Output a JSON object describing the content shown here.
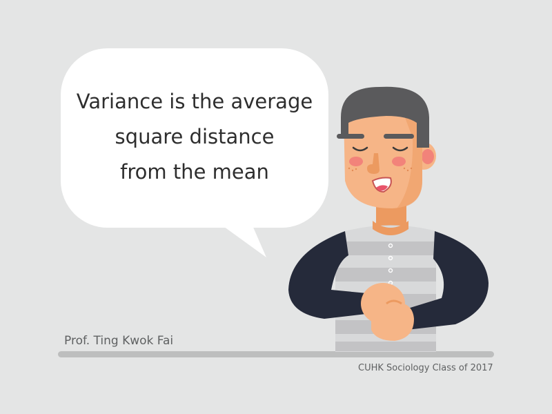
{
  "quote": {
    "lines": [
      "Variance is the average",
      "square distance",
      "from the mean"
    ]
  },
  "speaker": {
    "name": "Prof. Ting Kwok Fai"
  },
  "credit": {
    "text": "CUHK Sociology Class of 2017"
  },
  "colors": {
    "background": "#e4e5e5",
    "bubble": "#ffffff",
    "hair": "#5a5a5c",
    "skin": "#f6b587",
    "skin_shadow": "#ec9a60",
    "sleeve": "#252a3a",
    "vest": "#c6c6c8",
    "cheek": "#f2837a",
    "text": "#2e2e2e",
    "caption": "#5f6162"
  }
}
